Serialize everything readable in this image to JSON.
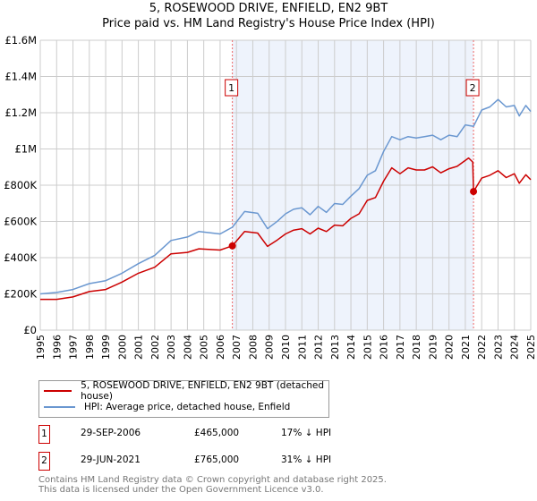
{
  "title": "5, ROSEWOOD DRIVE, ENFIELD, EN2 9BT",
  "subtitle": "Price paid vs. HM Land Registry's House Price Index (HPI)",
  "colors": {
    "property": "#cc0000",
    "hpi": "#6a97d0",
    "shade": "#eef3fc",
    "grid": "#cccccc"
  },
  "chart_data": {
    "type": "line",
    "xlim": [
      1995,
      2025
    ],
    "ylim": [
      0,
      1600000
    ],
    "ytick_values": [
      0,
      200000,
      400000,
      600000,
      800000,
      1000000,
      1200000,
      1400000,
      1600000
    ],
    "ytick_labels": [
      "£0",
      "£200K",
      "£400K",
      "£600K",
      "£800K",
      "£1M",
      "£1.2M",
      "£1.4M",
      "£1.6M"
    ],
    "xtick_labels": [
      "1995",
      "1996",
      "1997",
      "1998",
      "1999",
      "2000",
      "2001",
      "2002",
      "2003",
      "2004",
      "2005",
      "2006",
      "2007",
      "2008",
      "2009",
      "2010",
      "2011",
      "2012",
      "2013",
      "2014",
      "2015",
      "2016",
      "2017",
      "2018",
      "2019",
      "2020",
      "2021",
      "2022",
      "2023",
      "2024",
      "2025"
    ],
    "grid": true,
    "series": [
      {
        "name": "5, ROSEWOOD DRIVE, ENFIELD, EN2 9BT (detached house)",
        "x": [
          1995,
          1996,
          1997,
          1998,
          1999,
          2000,
          2001,
          2002,
          2003,
          2004,
          2004.7,
          2006,
          2006.75,
          2007.5,
          2008.3,
          2008.9,
          2009.5,
          2010,
          2010.5,
          2011,
          2011.5,
          2012,
          2012.5,
          2013,
          2013.5,
          2014,
          2014.5,
          2015,
          2015.5,
          2016,
          2016.5,
          2017,
          2017.5,
          2018,
          2018.5,
          2019,
          2019.5,
          2020,
          2020.5,
          2021.2,
          2021.45,
          2021.5,
          2022,
          2022.5,
          2023,
          2023.5,
          2024,
          2024.3,
          2024.7,
          2025
        ],
        "y": [
          170000,
          170000,
          183000,
          213000,
          224000,
          265000,
          314000,
          347000,
          421000,
          429000,
          449000,
          442000,
          465000,
          544000,
          536000,
          462000,
          498000,
          531000,
          552000,
          560000,
          531000,
          563000,
          544000,
          580000,
          576000,
          617000,
          642000,
          716000,
          732000,
          822000,
          896000,
          863000,
          896000,
          884000,
          884000,
          901000,
          868000,
          891000,
          904000,
          950000,
          928000,
          765000,
          839000,
          855000,
          880000,
          842000,
          863000,
          811000,
          858000,
          830000
        ]
      },
      {
        "name": "HPI: Average price, detached house, Enfield",
        "x": [
          1995,
          1996,
          1997,
          1998,
          1999,
          2000,
          2001,
          2002,
          2003,
          2004,
          2004.7,
          2006,
          2006.75,
          2007.5,
          2008.3,
          2008.9,
          2009.5,
          2010,
          2010.5,
          2011,
          2011.5,
          2012,
          2012.5,
          2013,
          2013.5,
          2014,
          2014.5,
          2015,
          2015.5,
          2016,
          2016.5,
          2017,
          2017.5,
          2018,
          2018.5,
          2019,
          2019.5,
          2020,
          2020.5,
          2021,
          2021.5,
          2022,
          2022.5,
          2023,
          2023.5,
          2024,
          2024.3,
          2024.7,
          2025
        ],
        "y": [
          200000,
          208000,
          224000,
          257000,
          273000,
          314000,
          367000,
          413000,
          495000,
          514000,
          544000,
          531000,
          568000,
          655000,
          645000,
          560000,
          601000,
          642000,
          667000,
          675000,
          637000,
          683000,
          650000,
          699000,
          694000,
          740000,
          781000,
          855000,
          880000,
          986000,
          1068000,
          1051000,
          1068000,
          1060000,
          1068000,
          1076000,
          1051000,
          1076000,
          1068000,
          1133000,
          1125000,
          1215000,
          1232000,
          1273000,
          1232000,
          1240000,
          1182000,
          1240000,
          1207000
        ]
      }
    ],
    "annotations": [
      {
        "label": "1",
        "x": 2006.75,
        "y": 465000
      },
      {
        "label": "2",
        "x": 2021.5,
        "y": 765000
      }
    ]
  },
  "legend": {
    "property": "5, ROSEWOOD DRIVE, ENFIELD, EN2 9BT (detached house)",
    "hpi": "HPI: Average price, detached house, Enfield"
  },
  "sales": [
    {
      "num": "1",
      "date": "29-SEP-2006",
      "price": "£465,000",
      "diff": "17% ↓ HPI"
    },
    {
      "num": "2",
      "date": "29-JUN-2021",
      "price": "£765,000",
      "diff": "31% ↓ HPI"
    }
  ],
  "footer": {
    "line1": "Contains HM Land Registry data © Crown copyright and database right 2025.",
    "line2": "This data is licensed under the Open Government Licence v3.0."
  }
}
